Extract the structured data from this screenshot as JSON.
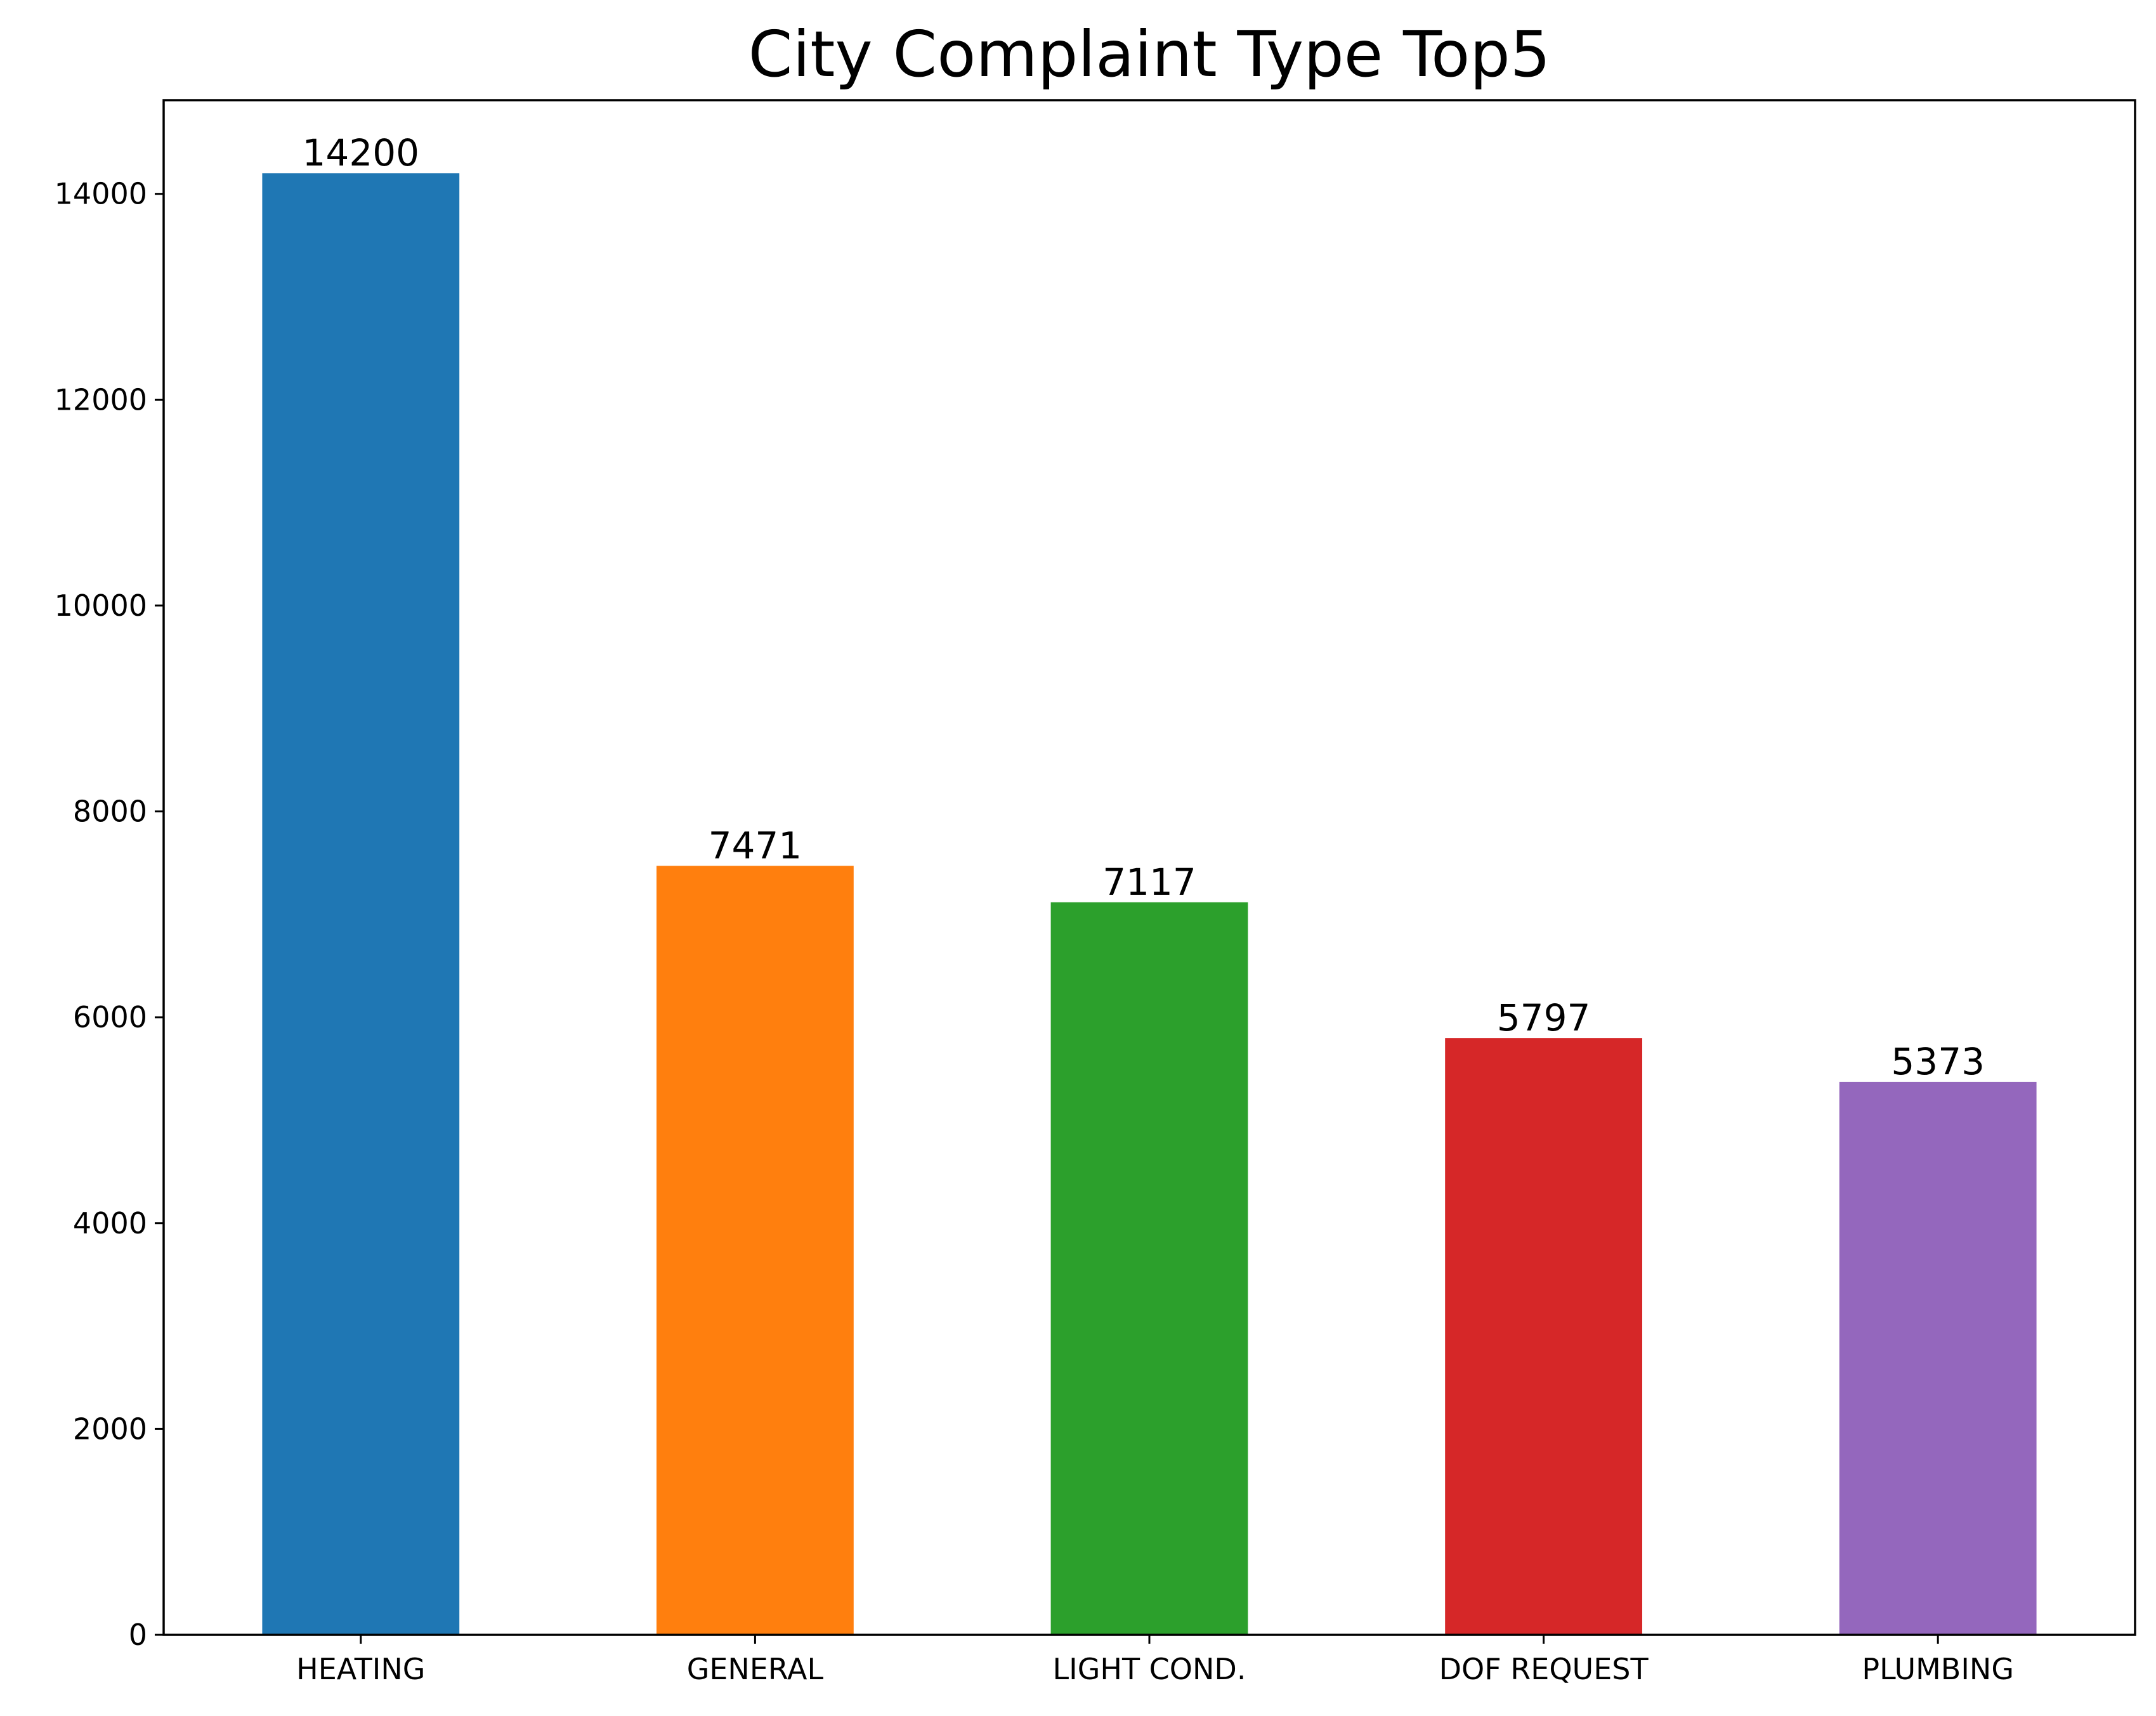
{
  "chart_data": {
    "type": "bar",
    "title": "City Complaint Type Top5",
    "xlabel": "",
    "ylabel": "",
    "categories": [
      "HEATING",
      "GENERAL",
      "LIGHT COND.",
      "DOF REQUEST",
      "PLUMBING"
    ],
    "values": [
      14200,
      7471,
      7117,
      5797,
      5373
    ],
    "value_labels": [
      "14200",
      "7471",
      "7117",
      "5797",
      "5373"
    ],
    "colors": [
      "#1f77b4",
      "#ff7f0e",
      "#2ca02c",
      "#d62728",
      "#9467bd"
    ],
    "ylim": [
      0,
      14910
    ],
    "yticks": [
      0,
      2000,
      4000,
      6000,
      8000,
      10000,
      12000,
      14000
    ],
    "ytick_labels": [
      "0",
      "2000",
      "4000",
      "6000",
      "8000",
      "10000",
      "12000",
      "14000"
    ],
    "grid": false,
    "legend": "none"
  }
}
